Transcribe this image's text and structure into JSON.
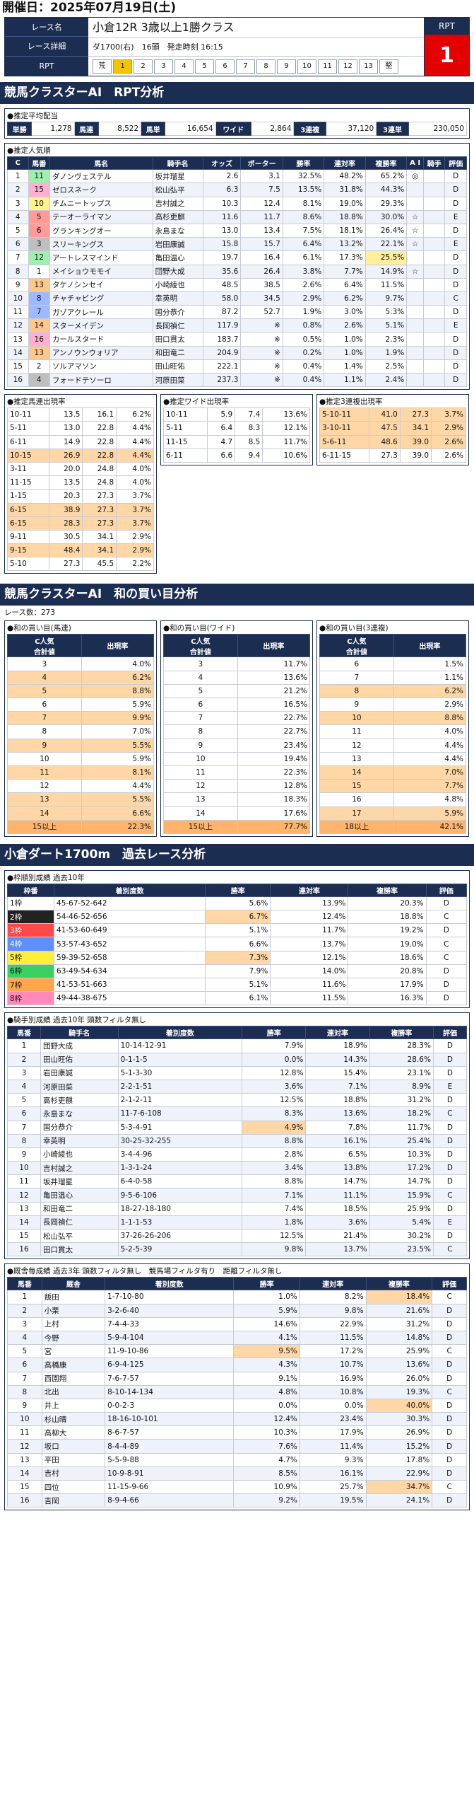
{
  "header": {
    "date": "開催日：2025年07月19日(土)"
  },
  "race": {
    "labels": [
      "レース名",
      "レース詳細",
      "RPT"
    ],
    "title": "小倉12R 3歳以上1勝クラス",
    "detail": "ダ1700(右)　16頭　発走時刻 16:15",
    "cells": [
      "荒",
      "1",
      "2",
      "3",
      "4",
      "5",
      "6",
      "7",
      "8",
      "9",
      "10",
      "11",
      "12",
      "13",
      "堅"
    ],
    "rpt_label": "RPT",
    "rpt_value": "1"
  },
  "sections": {
    "rpt": "競馬クラスターAI　RPT分析",
    "sum": "競馬クラスターAI　和の買い目分析",
    "past": "小倉ダート1700m　過去レース分析"
  },
  "payout": {
    "title": "●推定平均配当",
    "items": [
      [
        "単勝",
        "1,278"
      ],
      [
        "馬連",
        "8,522"
      ],
      [
        "馬単",
        "16,654"
      ],
      [
        "ワイド",
        "2,864"
      ],
      [
        "3連複",
        "37,120"
      ],
      [
        "3連単",
        "230,050"
      ]
    ]
  },
  "pop": {
    "title": "●推定人気順",
    "headers": [
      "C",
      "馬番",
      "馬名",
      "騎手名",
      "オッズ",
      "ポーター",
      "勝率",
      "連対率",
      "複勝率",
      "A I",
      "騎手",
      "評価"
    ],
    "rows": [
      [
        "1",
        "11",
        "ダノンヴェステル",
        "坂井瑠星",
        "2.6",
        "3.1",
        "32.5%",
        "48.2%",
        "65.2%",
        "◎",
        "",
        "D"
      ],
      [
        "2",
        "15",
        "ゼロスネーク",
        "松山弘平",
        "6.3",
        "7.5",
        "13.5%",
        "31.8%",
        "44.3%",
        "",
        "",
        "D"
      ],
      [
        "3",
        "10",
        "チムニートップス",
        "吉村誠之",
        "10.3",
        "12.4",
        "8.1%",
        "19.0%",
        "29.3%",
        "",
        "",
        "D"
      ],
      [
        "4",
        "5",
        "テーオーライマン",
        "高杉吏麒",
        "11.6",
        "11.7",
        "8.6%",
        "18.8%",
        "30.0%",
        "☆",
        "",
        "E"
      ],
      [
        "5",
        "6",
        "グランキングオー",
        "永島まな",
        "13.0",
        "13.4",
        "7.5%",
        "18.1%",
        "26.4%",
        "☆",
        "",
        "D"
      ],
      [
        "6",
        "3",
        "スリーキングス",
        "岩田康誠",
        "15.8",
        "15.7",
        "6.4%",
        "13.2%",
        "22.1%",
        "☆",
        "",
        "E"
      ],
      [
        "7",
        "12",
        "アートレスマインド",
        "亀田温心",
        "19.7",
        "16.4",
        "6.1%",
        "17.3%",
        "25.5%",
        "",
        "",
        "D"
      ],
      [
        "8",
        "1",
        "メイショウモモイ",
        "団野大成",
        "35.6",
        "26.4",
        "3.8%",
        "7.7%",
        "14.9%",
        "☆",
        "",
        "D"
      ],
      [
        "9",
        "13",
        "タケノシンセイ",
        "小崎綾也",
        "48.5",
        "38.5",
        "2.6%",
        "6.4%",
        "11.5%",
        "",
        "",
        "D"
      ],
      [
        "10",
        "8",
        "チャチャビング",
        "幸英明",
        "58.0",
        "34.5",
        "2.9%",
        "6.2%",
        "9.7%",
        "",
        "",
        "C"
      ],
      [
        "11",
        "7",
        "ガゾアクレール",
        "国分恭介",
        "87.2",
        "52.7",
        "1.9%",
        "3.0%",
        "5.3%",
        "",
        "",
        "D"
      ],
      [
        "12",
        "14",
        "スターメイデン",
        "長岡禎仁",
        "117.9",
        "※",
        "0.8%",
        "2.6%",
        "5.1%",
        "",
        "",
        "E"
      ],
      [
        "13",
        "16",
        "カールスタード",
        "田口貫太",
        "183.7",
        "※",
        "0.5%",
        "1.0%",
        "2.3%",
        "",
        "",
        "D"
      ],
      [
        "14",
        "13",
        "アンノウンウォリア",
        "和田竜二",
        "204.9",
        "※",
        "0.2%",
        "1.0%",
        "1.9%",
        "",
        "",
        "D"
      ],
      [
        "15",
        "2",
        "ソルアマソン",
        "田山旺佑",
        "222.1",
        "※",
        "0.4%",
        "1.4%",
        "2.5%",
        "",
        "",
        "D"
      ],
      [
        "16",
        "4",
        "フォードテソーロ",
        "河原田菜",
        "237.3",
        "※",
        "0.4%",
        "1.1%",
        "2.4%",
        "",
        "",
        "D"
      ]
    ]
  },
  "umaren": {
    "title": "●推定馬連出現率",
    "rows": [
      [
        "10-11",
        "13.5",
        "16.1",
        "6.2%"
      ],
      [
        "5-11",
        "13.0",
        "22.8",
        "4.4%"
      ],
      [
        "6-11",
        "14.9",
        "22.8",
        "4.4%"
      ],
      [
        "10-15",
        "26.9",
        "22.8",
        "4.4%"
      ],
      [
        "3-11",
        "20.0",
        "24.8",
        "4.0%"
      ],
      [
        "11-15",
        "13.5",
        "24.8",
        "4.0%"
      ],
      [
        "1-15",
        "20.3",
        "27.3",
        "3.7%"
      ],
      [
        "6-15",
        "38.9",
        "27.3",
        "3.7%"
      ],
      [
        "6-15",
        "28.3",
        "27.3",
        "3.7%"
      ],
      [
        "9-11",
        "30.5",
        "34.1",
        "2.9%"
      ],
      [
        "9-15",
        "48.4",
        "34.1",
        "2.9%"
      ],
      [
        "5-10",
        "27.3",
        "45.5",
        "2.2%"
      ]
    ]
  },
  "wide": {
    "title": "●推定ワイド出現率",
    "rows": [
      [
        "10-11",
        "5.9",
        "7.4",
        "13.6%"
      ],
      [
        "5-11",
        "6.4",
        "8.3",
        "12.1%"
      ],
      [
        "11-15",
        "4.7",
        "8.5",
        "11.7%"
      ],
      [
        "6-11",
        "6.6",
        "9.4",
        "10.6%"
      ]
    ]
  },
  "trio": {
    "title": "●推定3連複出現率",
    "rows": [
      [
        "5-10-11",
        "41.0",
        "27.3",
        "3.7%"
      ],
      [
        "3-10-11",
        "47.5",
        "34.1",
        "2.9%"
      ],
      [
        "5-6-11",
        "48.6",
        "39.0",
        "2.6%"
      ],
      [
        "6-11-15",
        "27.3",
        "39.0",
        "2.6%"
      ]
    ]
  },
  "sum": {
    "races": "レース数：273",
    "h1": "C人気\n合計値",
    "h2": "出現率",
    "tables": [
      {
        "title": "●和の買い目(馬連)",
        "rows": [
          [
            "3",
            "4.0%"
          ],
          [
            "4",
            "6.2%"
          ],
          [
            "5",
            "8.8%"
          ],
          [
            "6",
            "5.9%"
          ],
          [
            "7",
            "9.9%"
          ],
          [
            "8",
            "7.0%"
          ],
          [
            "9",
            "5.5%"
          ],
          [
            "10",
            "5.9%"
          ],
          [
            "11",
            "8.1%"
          ],
          [
            "12",
            "4.4%"
          ],
          [
            "13",
            "5.5%"
          ],
          [
            "14",
            "6.6%"
          ],
          [
            "15以上",
            "22.3%"
          ]
        ]
      },
      {
        "title": "●和の買い目(ワイド)",
        "rows": [
          [
            "3",
            "11.7%"
          ],
          [
            "4",
            "13.6%"
          ],
          [
            "5",
            "21.2%"
          ],
          [
            "6",
            "16.5%"
          ],
          [
            "7",
            "22.7%"
          ],
          [
            "8",
            "22.7%"
          ],
          [
            "9",
            "23.4%"
          ],
          [
            "10",
            "19.4%"
          ],
          [
            "11",
            "22.3%"
          ],
          [
            "12",
            "12.8%"
          ],
          [
            "13",
            "18.3%"
          ],
          [
            "14",
            "17.6%"
          ],
          [
            "15以上",
            "77.7%"
          ]
        ]
      },
      {
        "title": "●和の買い目(3連複)",
        "rows": [
          [
            "6",
            "1.5%"
          ],
          [
            "7",
            "1.1%"
          ],
          [
            "8",
            "6.2%"
          ],
          [
            "9",
            "2.9%"
          ],
          [
            "10",
            "8.8%"
          ],
          [
            "11",
            "4.0%"
          ],
          [
            "12",
            "4.4%"
          ],
          [
            "13",
            "4.4%"
          ],
          [
            "14",
            "7.0%"
          ],
          [
            "15",
            "7.7%"
          ],
          [
            "16",
            "4.8%"
          ],
          [
            "17",
            "5.9%"
          ],
          [
            "18以上",
            "42.1%"
          ]
        ]
      }
    ]
  },
  "waku": {
    "title": "●枠順別成績 過去10年",
    "headers": [
      "枠番",
      "着別度数",
      "勝率",
      "連対率",
      "複勝率",
      "評価"
    ],
    "rows": [
      [
        "1枠",
        "45-67-52-642",
        "5.6%",
        "13.9%",
        "20.3%",
        "D"
      ],
      [
        "2枠",
        "54-46-52-656",
        "6.7%",
        "12.4%",
        "18.8%",
        "C"
      ],
      [
        "3枠",
        "41-53-60-649",
        "5.1%",
        "11.7%",
        "19.2%",
        "D"
      ],
      [
        "4枠",
        "53-57-43-652",
        "6.6%",
        "13.7%",
        "19.0%",
        "C"
      ],
      [
        "5枠",
        "59-39-52-658",
        "7.3%",
        "12.1%",
        "18.6%",
        "C"
      ],
      [
        "6枠",
        "63-49-54-634",
        "7.9%",
        "14.0%",
        "20.8%",
        "D"
      ],
      [
        "7枠",
        "41-53-51-663",
        "5.1%",
        "11.6%",
        "17.9%",
        "D"
      ],
      [
        "8枠",
        "49-44-38-675",
        "6.1%",
        "11.5%",
        "16.3%",
        "D"
      ]
    ]
  },
  "jockey": {
    "title": "●騎手別成績 過去10年 頭数フィルタ無し",
    "headers": [
      "馬番",
      "騎手名",
      "着別度数",
      "勝率",
      "連対率",
      "複勝率",
      "評価"
    ],
    "rows": [
      [
        "1",
        "団野大成",
        "10-14-12-91",
        "7.9%",
        "18.9%",
        "28.3%",
        "D"
      ],
      [
        "2",
        "田山旺佑",
        "0-1-1-5",
        "0.0%",
        "14.3%",
        "28.6%",
        "D"
      ],
      [
        "3",
        "岩田康誠",
        "5-1-3-30",
        "12.8%",
        "15.4%",
        "23.1%",
        "D"
      ],
      [
        "4",
        "河原田菜",
        "2-2-1-51",
        "3.6%",
        "7.1%",
        "8.9%",
        "E"
      ],
      [
        "5",
        "高杉吏麒",
        "2-1-2-11",
        "12.5%",
        "18.8%",
        "31.2%",
        "D"
      ],
      [
        "6",
        "永島まな",
        "11-7-6-108",
        "8.3%",
        "13.6%",
        "18.2%",
        "C"
      ],
      [
        "7",
        "国分恭介",
        "5-3-4-91",
        "4.9%",
        "7.8%",
        "11.7%",
        "D"
      ],
      [
        "8",
        "幸英明",
        "30-25-32-255",
        "8.8%",
        "16.1%",
        "25.4%",
        "D"
      ],
      [
        "9",
        "小崎綾也",
        "3-4-4-96",
        "2.8%",
        "6.5%",
        "10.3%",
        "D"
      ],
      [
        "10",
        "吉村誠之",
        "1-3-1-24",
        "3.4%",
        "13.8%",
        "17.2%",
        "D"
      ],
      [
        "11",
        "坂井瑠星",
        "6-4-0-58",
        "8.8%",
        "14.7%",
        "14.7%",
        "D"
      ],
      [
        "12",
        "亀田温心",
        "9-5-6-106",
        "7.1%",
        "11.1%",
        "15.9%",
        "C"
      ],
      [
        "13",
        "和田竜二",
        "18-27-18-180",
        "7.4%",
        "18.5%",
        "25.9%",
        "D"
      ],
      [
        "14",
        "長岡禎仁",
        "1-1-1-53",
        "1.8%",
        "3.6%",
        "5.4%",
        "E"
      ],
      [
        "15",
        "松山弘平",
        "37-26-26-206",
        "12.5%",
        "21.4%",
        "30.2%",
        "D"
      ],
      [
        "16",
        "田口貫太",
        "5-2-5-39",
        "9.8%",
        "13.7%",
        "23.5%",
        "C"
      ]
    ]
  },
  "stable": {
    "title": "●厩舎毎成績 過去3年 頭数フィルタ無し　競馬場フィルタ有り　距離フィルタ無し",
    "headers": [
      "馬番",
      "厩舎",
      "着別度数",
      "勝率",
      "連対率",
      "複勝率",
      "評価"
    ],
    "rows": [
      [
        "1",
        "飯田",
        "1-7-10-80",
        "1.0%",
        "8.2%",
        "18.4%",
        "C"
      ],
      [
        "2",
        "小栗",
        "3-2-6-40",
        "5.9%",
        "9.8%",
        "21.6%",
        "D"
      ],
      [
        "3",
        "上村",
        "7-4-4-33",
        "14.6%",
        "22.9%",
        "31.2%",
        "D"
      ],
      [
        "4",
        "今野",
        "5-9-4-104",
        "4.1%",
        "11.5%",
        "14.8%",
        "D"
      ],
      [
        "5",
        "宮",
        "11-9-10-86",
        "9.5%",
        "17.2%",
        "25.9%",
        "C"
      ],
      [
        "6",
        "高橋康",
        "6-9-4-125",
        "4.3%",
        "10.7%",
        "13.6%",
        "D"
      ],
      [
        "7",
        "西園翔",
        "7-6-7-57",
        "9.1%",
        "16.9%",
        "26.0%",
        "D"
      ],
      [
        "8",
        "北出",
        "8-10-14-134",
        "4.8%",
        "10.8%",
        "19.3%",
        "C"
      ],
      [
        "9",
        "井上",
        "0-0-2-3",
        "0.0%",
        "0.0%",
        "40.0%",
        "D"
      ],
      [
        "10",
        "杉山晴",
        "18-16-10-101",
        "12.4%",
        "23.4%",
        "30.3%",
        "D"
      ],
      [
        "11",
        "高柳大",
        "8-6-7-57",
        "10.3%",
        "17.9%",
        "26.9%",
        "D"
      ],
      [
        "12",
        "坂口",
        "8-4-4-89",
        "7.6%",
        "11.4%",
        "15.2%",
        "D"
      ],
      [
        "13",
        "平田",
        "5-5-9-88",
        "4.7%",
        "9.3%",
        "17.8%",
        "D"
      ],
      [
        "14",
        "吉村",
        "10-9-8-91",
        "8.5%",
        "16.1%",
        "22.9%",
        "D"
      ],
      [
        "15",
        "四位",
        "11-15-9-66",
        "10.9%",
        "25.7%",
        "34.7%",
        "C"
      ],
      [
        "16",
        "吉岡",
        "8-9-4-66",
        "9.2%",
        "19.5%",
        "24.1%",
        "D"
      ]
    ]
  }
}
